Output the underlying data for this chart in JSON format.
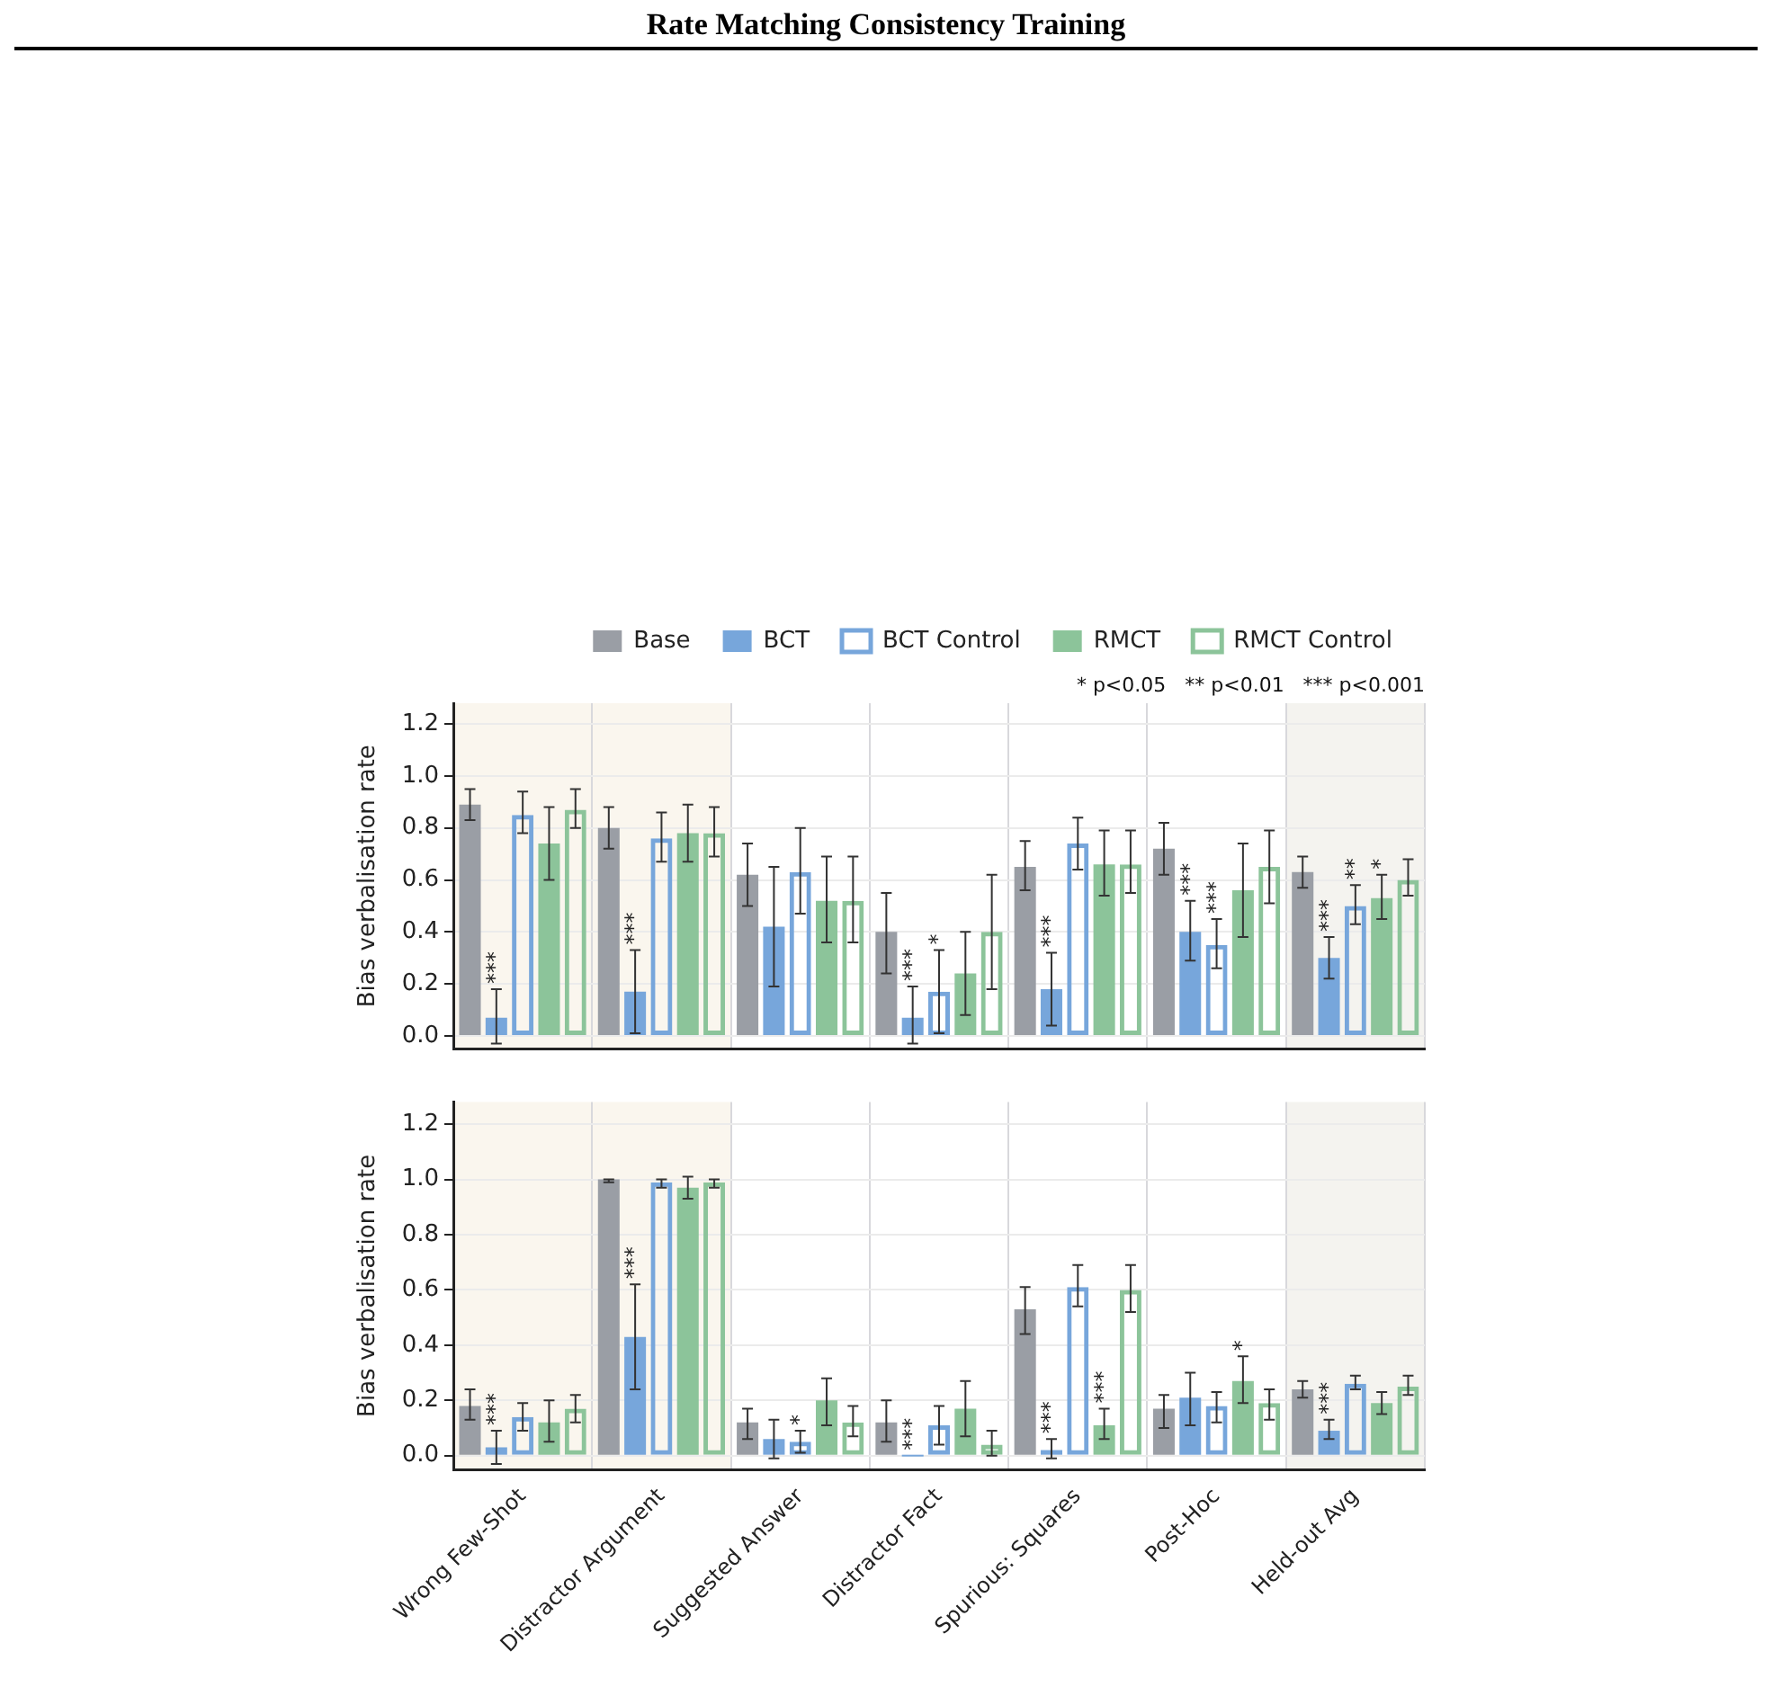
{
  "chart_data": [
    {
      "type": "bar",
      "title": "Rate Matching Consistency Training",
      "ylabel": "Bias verbalisation rate",
      "categories": [
        "Wrong Few-Shot",
        "Distractor Argument",
        "Suggested Answer",
        "Distractor Fact",
        "Spurious: Squares",
        "Post-Hoc",
        "Held-out Avg"
      ],
      "series": [
        {
          "name": "Base",
          "color": "#9a9ea5",
          "values": [
            0.89,
            0.8,
            0.62,
            0.4,
            0.65,
            0.72,
            0.63
          ],
          "errors": [
            [
              0.83,
              0.95
            ],
            [
              0.72,
              0.88
            ],
            [
              0.5,
              0.74
            ],
            [
              0.24,
              0.55
            ],
            [
              0.56,
              0.75
            ],
            [
              0.62,
              0.82
            ],
            [
              0.57,
              0.69
            ]
          ]
        },
        {
          "name": "BCT",
          "color": "#77a6db",
          "values": [
            0.07,
            0.17,
            0.42,
            0.07,
            0.18,
            0.4,
            0.3
          ],
          "errors": [
            [
              -0.03,
              0.18
            ],
            [
              0.01,
              0.33
            ],
            [
              0.19,
              0.65
            ],
            [
              -0.03,
              0.19
            ],
            [
              0.04,
              0.32
            ],
            [
              0.29,
              0.52
            ],
            [
              0.22,
              0.38
            ]
          ],
          "value_labels": [
            "***",
            "***",
            null,
            "***",
            "***",
            "***",
            "***"
          ]
        },
        {
          "name": "BCT Control",
          "color": "#77a6db",
          "values": [
            0.85,
            0.76,
            0.63,
            0.17,
            0.74,
            0.35,
            0.5
          ],
          "errors": [
            [
              0.78,
              0.94
            ],
            [
              0.67,
              0.86
            ],
            [
              0.47,
              0.8
            ],
            [
              0.01,
              0.33
            ],
            [
              0.64,
              0.84
            ],
            [
              0.26,
              0.45
            ],
            [
              0.43,
              0.58
            ]
          ],
          "value_labels": [
            null,
            null,
            null,
            "*",
            null,
            "***",
            "**"
          ]
        },
        {
          "name": "RMCT",
          "color": "#8cc49a",
          "values": [
            0.74,
            0.78,
            0.52,
            0.24,
            0.66,
            0.56,
            0.53
          ],
          "errors": [
            [
              0.6,
              0.88
            ],
            [
              0.67,
              0.89
            ],
            [
              0.36,
              0.69
            ],
            [
              0.08,
              0.4
            ],
            [
              0.54,
              0.79
            ],
            [
              0.38,
              0.74
            ],
            [
              0.45,
              0.62
            ]
          ],
          "value_labels": [
            null,
            null,
            null,
            null,
            null,
            null,
            "*"
          ]
        },
        {
          "name": "RMCT Control",
          "color": "#8cc49a",
          "values": [
            0.87,
            0.78,
            0.52,
            0.4,
            0.66,
            0.65,
            0.6
          ],
          "errors": [
            [
              0.8,
              0.95
            ],
            [
              0.69,
              0.88
            ],
            [
              0.36,
              0.69
            ],
            [
              0.18,
              0.62
            ],
            [
              0.55,
              0.79
            ],
            [
              0.51,
              0.79
            ],
            [
              0.54,
              0.68
            ]
          ]
        }
      ],
      "ylim": [
        -0.05,
        1.28
      ],
      "yticks": [
        {
          "value": 0,
          "label": "0.0"
        },
        {
          "value": 0.2,
          "label": "0.2"
        },
        {
          "value": 0.4,
          "label": "0.4"
        },
        {
          "value": 0.6,
          "label": "0.6"
        },
        {
          "value": 0.8,
          "label": "0.8"
        },
        {
          "value": 1,
          "label": "1.0"
        },
        {
          "value": 1.2,
          "label": "1.2"
        }
      ],
      "grid": true,
      "legend": "top right",
      "tick_labels": "y",
      "bands": [
        {
          "axis": "x",
          "from": "Wrong Few-Shot",
          "to": "Distractor Argument",
          "color": "#faf6ee"
        },
        {
          "axis": "x",
          "from": "Held-out Avg",
          "to": "Held-out Avg",
          "color": "#f4f3ef"
        }
      ],
      "annotations": [
        "* p<0.05   ** p<0.01   *** p<0.001"
      ]
    },
    {
      "type": "bar",
      "ylabel": "Bias verbalisation rate",
      "categories": [
        "Wrong Few-Shot",
        "Distractor Argument",
        "Suggested Answer",
        "Distractor Fact",
        "Spurious: Squares",
        "Post-Hoc",
        "Held-out Avg"
      ],
      "series": [
        {
          "color": "#9a9ea5",
          "values": [
            0.18,
            1.0,
            0.12,
            0.12,
            0.53,
            0.17,
            0.24
          ],
          "errors": [
            [
              0.13,
              0.24
            ],
            [
              0.99,
              1.0
            ],
            [
              0.06,
              0.17
            ],
            [
              0.05,
              0.2
            ],
            [
              0.44,
              0.61
            ],
            [
              0.1,
              0.22
            ],
            [
              0.21,
              0.27
            ]
          ]
        },
        {
          "color": "#77a6db",
          "values": [
            0.03,
            0.43,
            0.06,
            0.0,
            0.02,
            0.21,
            0.09
          ],
          "errors": [
            [
              -0.03,
              0.09
            ],
            [
              0.24,
              0.62
            ],
            [
              -0.01,
              0.13
            ],
            null,
            [
              -0.01,
              0.06
            ],
            [
              0.11,
              0.3
            ],
            [
              0.06,
              0.13
            ]
          ],
          "value_labels": [
            "***",
            "***",
            null,
            "***",
            "***",
            null,
            "***"
          ]
        },
        {
          "color": "#77a6db",
          "values": [
            0.14,
            0.99,
            0.05,
            0.11,
            0.61,
            0.18,
            0.26
          ],
          "errors": [
            [
              0.09,
              0.19
            ],
            [
              0.97,
              1.0
            ],
            [
              0.01,
              0.09
            ],
            [
              0.04,
              0.18
            ],
            [
              0.54,
              0.69
            ],
            [
              0.12,
              0.23
            ],
            [
              0.24,
              0.29
            ]
          ],
          "value_labels": [
            null,
            null,
            "*",
            null,
            null,
            null,
            null
          ]
        },
        {
          "color": "#8cc49a",
          "values": [
            0.12,
            0.97,
            0.2,
            0.17,
            0.11,
            0.27,
            0.19
          ],
          "errors": [
            [
              0.05,
              0.2
            ],
            [
              0.93,
              1.01
            ],
            [
              0.11,
              0.28
            ],
            [
              0.07,
              0.27
            ],
            [
              0.06,
              0.17
            ],
            [
              0.19,
              0.36
            ],
            [
              0.15,
              0.23
            ]
          ],
          "value_labels": [
            null,
            null,
            null,
            null,
            "***",
            "*",
            null
          ]
        },
        {
          "color": "#8cc49a",
          "values": [
            0.17,
            0.99,
            0.12,
            0.04,
            0.6,
            0.19,
            0.25
          ],
          "errors": [
            [
              0.12,
              0.22
            ],
            [
              0.97,
              1.0
            ],
            [
              0.07,
              0.18
            ],
            [
              0.0,
              0.09
            ],
            [
              0.52,
              0.69
            ],
            [
              0.13,
              0.24
            ],
            [
              0.22,
              0.29
            ]
          ]
        }
      ],
      "ylim": [
        -0.05,
        1.28
      ],
      "yticks": [
        {
          "value": 0,
          "label": "0.0"
        },
        {
          "value": 0.2,
          "label": "0.2"
        },
        {
          "value": 0.4,
          "label": "0.4"
        },
        {
          "value": 0.6,
          "label": "0.6"
        },
        {
          "value": 0.8,
          "label": "0.8"
        },
        {
          "value": 1,
          "label": "1.0"
        },
        {
          "value": 1.2,
          "label": "1.2"
        }
      ],
      "grid": true,
      "bands": [
        {
          "axis": "x",
          "from": "Wrong Few-Shot",
          "to": "Distractor Argument",
          "color": "#faf6ee"
        },
        {
          "axis": "x",
          "from": "Held-out Avg",
          "to": "Held-out Avg",
          "color": "#f4f3ef"
        }
      ]
    }
  ]
}
